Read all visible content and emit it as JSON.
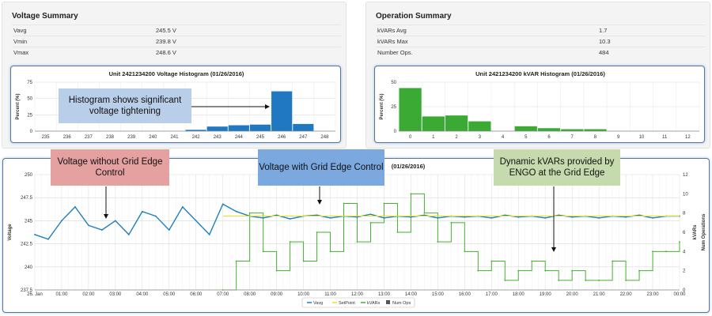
{
  "voltage_summary": {
    "title": "Voltage Summary",
    "rows": [
      {
        "label": "Vavg",
        "value": "245.5 V"
      },
      {
        "label": "Vmin",
        "value": "239.8 V"
      },
      {
        "label": "Vmax",
        "value": "248.6 V"
      }
    ]
  },
  "operation_summary": {
    "title": "Operation Summary",
    "rows": [
      {
        "label": "kVARs Avg",
        "value": "1.7"
      },
      {
        "label": "kVARs Max",
        "value": "10.3"
      },
      {
        "label": "Number Ops.",
        "value": "484"
      }
    ]
  },
  "callouts": {
    "histogram": "Histogram shows significant voltage tightening",
    "without": "Voltage without Grid Edge Control",
    "with": "Voltage with Grid Edge Control",
    "dynamic": "Dynamic kVARs provided by ENGO at the Grid Edge"
  },
  "colors": {
    "voltage_bar": "#1f78c1",
    "kvar_bar": "#3aaa35",
    "vavg_line": "#1f7fc0",
    "kvar_line": "#44b12f",
    "setpoint_line": "#e8e21a",
    "callout_histogram": "#b9cfe9",
    "callout_without": "#e5a0a0",
    "callout_with": "#7aa8df",
    "callout_dynamic": "#c6dbad",
    "panel_border": "#4f77aa"
  },
  "chart_data": [
    {
      "type": "bar",
      "title": "Unit 2421234200 Voltage Histogram (01/26/2016)",
      "ylabel": "Percent (%)",
      "ylim": [
        0,
        75
      ],
      "yticks": [
        "0",
        "25",
        "50",
        "75"
      ],
      "categories": [
        "235",
        "236",
        "237",
        "238",
        "239",
        "240",
        "241",
        "242",
        "243",
        "244",
        "245",
        "246",
        "247",
        "248"
      ],
      "values": [
        0,
        0,
        0,
        0,
        0,
        0,
        0,
        2,
        7,
        9,
        10,
        61,
        11,
        0
      ]
    },
    {
      "type": "bar",
      "title": "Unit 2421234200 kVAR Histogram (01/26/2016)",
      "ylabel": "Percent (%)",
      "ylim": [
        0,
        50
      ],
      "yticks": [
        "0",
        "25",
        "50"
      ],
      "categories": [
        "0",
        "1",
        "2",
        "3",
        "4",
        "5",
        "6",
        "7",
        "8",
        "9",
        "10",
        "11",
        "12"
      ],
      "values": [
        44,
        15,
        16,
        10,
        0,
        5,
        3,
        2,
        2,
        0,
        0,
        0,
        0
      ]
    },
    {
      "type": "line",
      "title": "(01/26/2016)",
      "ylabel": "Voltage",
      "y2label": "kVARs",
      "y3label": "Num Operations",
      "ylim": [
        237.5,
        250
      ],
      "yticks": [
        "237.5",
        "240",
        "242.5",
        "245",
        "247.5",
        "250"
      ],
      "y2lim": [
        0,
        12
      ],
      "y2ticks": [
        "0",
        "2",
        "4",
        "6",
        "8",
        "10",
        "12"
      ],
      "xticks": [
        "26. Jan",
        "01:00",
        "02:00",
        "03:00",
        "04:00",
        "05:00",
        "06:00",
        "07:00",
        "08:00",
        "09:00",
        "10:00",
        "11:00",
        "12:00",
        "13:00",
        "14:00",
        "15:00",
        "16:00",
        "17:00",
        "18:00",
        "19:00",
        "20:00",
        "21:00",
        "22:00",
        "23:00",
        "00:00"
      ],
      "legend": [
        "Vavg",
        "SetPoint",
        "kVARs",
        "Num Ops"
      ],
      "legend_position": "bottom",
      "grid": true,
      "series": [
        {
          "name": "Vavg",
          "x": [
            0,
            0.5,
            1,
            1.5,
            2,
            2.5,
            3,
            3.5,
            4,
            4.5,
            5,
            5.5,
            6,
            6.5,
            7,
            7.5,
            8,
            8.5,
            9,
            9.5,
            10,
            10.5,
            11,
            11.5,
            12,
            12.5,
            13,
            13.5,
            14,
            14.5,
            15,
            15.5,
            16,
            16.5,
            17,
            17.5,
            18,
            18.5,
            19,
            19.5,
            20,
            20.5,
            21,
            21.5,
            22,
            22.5,
            23,
            23.5,
            24
          ],
          "values": [
            243.5,
            243,
            245,
            246.5,
            244.5,
            244,
            245,
            243.5,
            246,
            245.5,
            244,
            246.5,
            245,
            243.5,
            246.8,
            246,
            245.5,
            245.3,
            245.6,
            245.2,
            245.5,
            245.6,
            245.3,
            245.5,
            245.4,
            245.7,
            245.3,
            245.5,
            245.4,
            245.6,
            245.3,
            245.5,
            245.4,
            245.5,
            245.3,
            245.6,
            245.4,
            245.5,
            245.3,
            245.6,
            245.4,
            245.5,
            245.3,
            245.5,
            245.4,
            245.6,
            245.3,
            245.5,
            245.5
          ]
        },
        {
          "name": "SetPoint",
          "x": [
            7,
            24
          ],
          "values": [
            245.5,
            245.5
          ]
        },
        {
          "name": "kVARs",
          "x": [
            7,
            7.5,
            8,
            8.5,
            9,
            9.5,
            10,
            10.5,
            11,
            11.5,
            12,
            12.5,
            13,
            13.5,
            14,
            14.5,
            15,
            15.5,
            16,
            16.5,
            17,
            17.5,
            18,
            18.5,
            19,
            19.5,
            20,
            20.5,
            21,
            21.5,
            22,
            22.5,
            23,
            23.5,
            24
          ],
          "values": [
            0,
            3,
            8,
            4,
            2,
            5,
            3,
            6,
            4,
            9,
            5,
            7,
            9,
            6,
            10,
            8,
            5,
            7,
            4,
            2,
            3,
            1,
            2,
            3,
            2,
            1,
            2,
            1,
            1,
            3,
            1,
            2,
            4,
            4,
            5
          ]
        }
      ]
    }
  ]
}
